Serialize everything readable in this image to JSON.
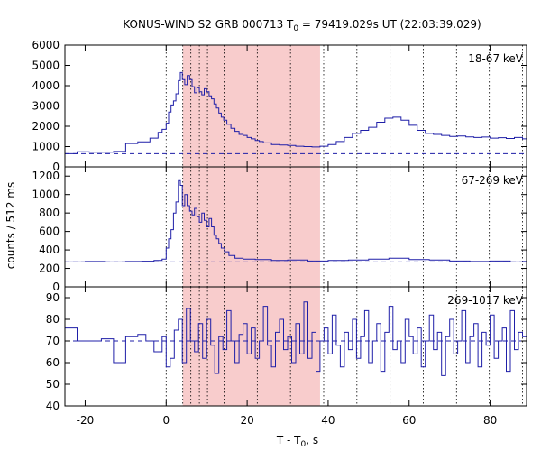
{
  "chart_data": {
    "type": "line",
    "title": "KONUS-WIND S2 GRB 000713 T0 = 79419.029s UT (22:03:39.029)",
    "title_parts": {
      "pre": "KONUS-WIND S2 GRB 000713 T",
      "sub": "0",
      "post": " = 79419.029s UT (22:03:39.029)"
    },
    "xlabel_parts": {
      "pre": "T - T",
      "sub": "0",
      "post": ", s"
    },
    "ylabel": "counts / 512 ms",
    "xlim": [
      -25,
      89
    ],
    "xticks": [
      -20,
      0,
      20,
      40,
      60,
      80
    ],
    "colors": {
      "line": "#1f1fa8",
      "shade": "#f8cccc",
      "background_level": "#1f1fa8",
      "grid": "#000000"
    },
    "shaded_interval": [
      4.1,
      38.0
    ],
    "vertical_marks": [
      0,
      4.1,
      6.1,
      8.2,
      10.2,
      14.3,
      22.5,
      30.7,
      38.9,
      47.1,
      55.3,
      63.5,
      71.7,
      79.8,
      88.0
    ],
    "panels": [
      {
        "label": "18-67 keV",
        "ylim": [
          0,
          6000
        ],
        "yticks": [
          0,
          1000,
          2000,
          3000,
          4000,
          5000,
          6000
        ],
        "background_level": 650,
        "series": [
          {
            "x": -25,
            "y": 650
          },
          {
            "x": -22,
            "y": 740
          },
          {
            "x": -19,
            "y": 720
          },
          {
            "x": -16,
            "y": 720
          },
          {
            "x": -13,
            "y": 760
          },
          {
            "x": -10,
            "y": 1150
          },
          {
            "x": -7,
            "y": 1230
          },
          {
            "x": -4,
            "y": 1420
          },
          {
            "x": -2,
            "y": 1700
          },
          {
            "x": -1,
            "y": 1850
          },
          {
            "x": 0,
            "y": 2150
          },
          {
            "x": 0.6,
            "y": 2700
          },
          {
            "x": 1.2,
            "y": 3050
          },
          {
            "x": 1.8,
            "y": 3250
          },
          {
            "x": 2.4,
            "y": 3600
          },
          {
            "x": 3.0,
            "y": 4250
          },
          {
            "x": 3.5,
            "y": 4650
          },
          {
            "x": 4.0,
            "y": 4300
          },
          {
            "x": 4.6,
            "y": 4050
          },
          {
            "x": 5.2,
            "y": 4500
          },
          {
            "x": 5.8,
            "y": 4300
          },
          {
            "x": 6.4,
            "y": 3950
          },
          {
            "x": 7.0,
            "y": 3650
          },
          {
            "x": 7.6,
            "y": 3900
          },
          {
            "x": 8.2,
            "y": 3700
          },
          {
            "x": 8.8,
            "y": 3550
          },
          {
            "x": 9.4,
            "y": 3850
          },
          {
            "x": 10.0,
            "y": 3700
          },
          {
            "x": 10.6,
            "y": 3500
          },
          {
            "x": 11.2,
            "y": 3350
          },
          {
            "x": 11.8,
            "y": 3100
          },
          {
            "x": 12.4,
            "y": 2900
          },
          {
            "x": 13.0,
            "y": 2650
          },
          {
            "x": 13.6,
            "y": 2450
          },
          {
            "x": 14.2,
            "y": 2300
          },
          {
            "x": 15.0,
            "y": 2100
          },
          {
            "x": 16.0,
            "y": 1900
          },
          {
            "x": 17.0,
            "y": 1750
          },
          {
            "x": 18.0,
            "y": 1600
          },
          {
            "x": 19.0,
            "y": 1550
          },
          {
            "x": 20.0,
            "y": 1450
          },
          {
            "x": 21.0,
            "y": 1380
          },
          {
            "x": 22.0,
            "y": 1300
          },
          {
            "x": 23.0,
            "y": 1250
          },
          {
            "x": 24.0,
            "y": 1180
          },
          {
            "x": 26.0,
            "y": 1100
          },
          {
            "x": 28.0,
            "y": 1080
          },
          {
            "x": 30.0,
            "y": 1060
          },
          {
            "x": 32.0,
            "y": 1020
          },
          {
            "x": 34.0,
            "y": 1000
          },
          {
            "x": 36.0,
            "y": 980
          },
          {
            "x": 38.0,
            "y": 1020
          },
          {
            "x": 40.0,
            "y": 1100
          },
          {
            "x": 42.0,
            "y": 1250
          },
          {
            "x": 44.0,
            "y": 1450
          },
          {
            "x": 46.0,
            "y": 1650
          },
          {
            "x": 48.0,
            "y": 1800
          },
          {
            "x": 50.0,
            "y": 1950
          },
          {
            "x": 52.0,
            "y": 2200
          },
          {
            "x": 54.0,
            "y": 2400
          },
          {
            "x": 56.0,
            "y": 2450
          },
          {
            "x": 58.0,
            "y": 2300
          },
          {
            "x": 60.0,
            "y": 2050
          },
          {
            "x": 62.0,
            "y": 1800
          },
          {
            "x": 64.0,
            "y": 1650
          },
          {
            "x": 66.0,
            "y": 1600
          },
          {
            "x": 68.0,
            "y": 1550
          },
          {
            "x": 70.0,
            "y": 1500
          },
          {
            "x": 72.0,
            "y": 1520
          },
          {
            "x": 74.0,
            "y": 1480
          },
          {
            "x": 76.0,
            "y": 1450
          },
          {
            "x": 78.0,
            "y": 1470
          },
          {
            "x": 80.0,
            "y": 1420
          },
          {
            "x": 82.0,
            "y": 1440
          },
          {
            "x": 84.0,
            "y": 1400
          },
          {
            "x": 86.0,
            "y": 1450
          },
          {
            "x": 88.0,
            "y": 1380
          }
        ]
      },
      {
        "label": "67-269 keV",
        "ylim": [
          0,
          1300
        ],
        "yticks": [
          0,
          200,
          400,
          600,
          800,
          1000,
          1200
        ],
        "background_level": 270,
        "series": [
          {
            "x": -25,
            "y": 270
          },
          {
            "x": -20,
            "y": 275
          },
          {
            "x": -15,
            "y": 270
          },
          {
            "x": -10,
            "y": 275
          },
          {
            "x": -6,
            "y": 278
          },
          {
            "x": -3,
            "y": 285
          },
          {
            "x": -1,
            "y": 300
          },
          {
            "x": 0,
            "y": 420
          },
          {
            "x": 0.6,
            "y": 520
          },
          {
            "x": 1.2,
            "y": 620
          },
          {
            "x": 1.8,
            "y": 800
          },
          {
            "x": 2.4,
            "y": 920
          },
          {
            "x": 3.0,
            "y": 1150
          },
          {
            "x": 3.5,
            "y": 1100
          },
          {
            "x": 4.0,
            "y": 880
          },
          {
            "x": 4.6,
            "y": 1000
          },
          {
            "x": 5.2,
            "y": 880
          },
          {
            "x": 5.8,
            "y": 820
          },
          {
            "x": 6.4,
            "y": 780
          },
          {
            "x": 7.0,
            "y": 850
          },
          {
            "x": 7.6,
            "y": 760
          },
          {
            "x": 8.2,
            "y": 700
          },
          {
            "x": 8.8,
            "y": 800
          },
          {
            "x": 9.4,
            "y": 720
          },
          {
            "x": 10.0,
            "y": 650
          },
          {
            "x": 10.6,
            "y": 740
          },
          {
            "x": 11.2,
            "y": 650
          },
          {
            "x": 11.8,
            "y": 560
          },
          {
            "x": 12.4,
            "y": 520
          },
          {
            "x": 13.0,
            "y": 470
          },
          {
            "x": 13.6,
            "y": 420
          },
          {
            "x": 14.4,
            "y": 380
          },
          {
            "x": 15.5,
            "y": 340
          },
          {
            "x": 17.0,
            "y": 310
          },
          {
            "x": 19.0,
            "y": 300
          },
          {
            "x": 22.0,
            "y": 295
          },
          {
            "x": 26.0,
            "y": 285
          },
          {
            "x": 30.0,
            "y": 290
          },
          {
            "x": 35.0,
            "y": 280
          },
          {
            "x": 40.0,
            "y": 285
          },
          {
            "x": 45.0,
            "y": 290
          },
          {
            "x": 50.0,
            "y": 300
          },
          {
            "x": 55.0,
            "y": 310
          },
          {
            "x": 60.0,
            "y": 295
          },
          {
            "x": 65.0,
            "y": 290
          },
          {
            "x": 70.0,
            "y": 280
          },
          {
            "x": 75.0,
            "y": 275
          },
          {
            "x": 80.0,
            "y": 280
          },
          {
            "x": 85.0,
            "y": 270
          },
          {
            "x": 88.0,
            "y": 275
          }
        ]
      },
      {
        "label": "269-1017 keV",
        "ylim": [
          40,
          95
        ],
        "yticks": [
          40,
          50,
          60,
          70,
          80,
          90
        ],
        "background_level": 70,
        "series": [
          {
            "x": -25,
            "y": 76
          },
          {
            "x": -22,
            "y": 70
          },
          {
            "x": -19,
            "y": 70
          },
          {
            "x": -16,
            "y": 71
          },
          {
            "x": -13,
            "y": 60
          },
          {
            "x": -10,
            "y": 72
          },
          {
            "x": -7,
            "y": 73
          },
          {
            "x": -5,
            "y": 70
          },
          {
            "x": -3,
            "y": 65
          },
          {
            "x": -1,
            "y": 72
          },
          {
            "x": 0,
            "y": 58
          },
          {
            "x": 1,
            "y": 62
          },
          {
            "x": 2,
            "y": 75
          },
          {
            "x": 3,
            "y": 80
          },
          {
            "x": 4,
            "y": 60
          },
          {
            "x": 5,
            "y": 85
          },
          {
            "x": 6,
            "y": 70
          },
          {
            "x": 7,
            "y": 65
          },
          {
            "x": 8,
            "y": 78
          },
          {
            "x": 9,
            "y": 62
          },
          {
            "x": 10,
            "y": 80
          },
          {
            "x": 11,
            "y": 68
          },
          {
            "x": 12,
            "y": 55
          },
          {
            "x": 13,
            "y": 72
          },
          {
            "x": 14,
            "y": 66
          },
          {
            "x": 15,
            "y": 84
          },
          {
            "x": 16,
            "y": 70
          },
          {
            "x": 17,
            "y": 60
          },
          {
            "x": 18,
            "y": 73
          },
          {
            "x": 19,
            "y": 78
          },
          {
            "x": 20,
            "y": 64
          },
          {
            "x": 21,
            "y": 76
          },
          {
            "x": 22,
            "y": 62
          },
          {
            "x": 23,
            "y": 70
          },
          {
            "x": 24,
            "y": 86
          },
          {
            "x": 25,
            "y": 68
          },
          {
            "x": 26,
            "y": 58
          },
          {
            "x": 27,
            "y": 74
          },
          {
            "x": 28,
            "y": 80
          },
          {
            "x": 29,
            "y": 66
          },
          {
            "x": 30,
            "y": 72
          },
          {
            "x": 31,
            "y": 60
          },
          {
            "x": 32,
            "y": 78
          },
          {
            "x": 33,
            "y": 64
          },
          {
            "x": 34,
            "y": 88
          },
          {
            "x": 35,
            "y": 62
          },
          {
            "x": 36,
            "y": 74
          },
          {
            "x": 37,
            "y": 56
          },
          {
            "x": 38,
            "y": 70
          },
          {
            "x": 39,
            "y": 76
          },
          {
            "x": 40,
            "y": 64
          },
          {
            "x": 41,
            "y": 82
          },
          {
            "x": 42,
            "y": 68
          },
          {
            "x": 43,
            "y": 58
          },
          {
            "x": 44,
            "y": 74
          },
          {
            "x": 45,
            "y": 66
          },
          {
            "x": 46,
            "y": 80
          },
          {
            "x": 47,
            "y": 62
          },
          {
            "x": 48,
            "y": 72
          },
          {
            "x": 49,
            "y": 84
          },
          {
            "x": 50,
            "y": 60
          },
          {
            "x": 51,
            "y": 70
          },
          {
            "x": 52,
            "y": 78
          },
          {
            "x": 53,
            "y": 56
          },
          {
            "x": 54,
            "y": 74
          },
          {
            "x": 55,
            "y": 86
          },
          {
            "x": 56,
            "y": 66
          },
          {
            "x": 57,
            "y": 70
          },
          {
            "x": 58,
            "y": 60
          },
          {
            "x": 59,
            "y": 80
          },
          {
            "x": 60,
            "y": 72
          },
          {
            "x": 61,
            "y": 64
          },
          {
            "x": 62,
            "y": 76
          },
          {
            "x": 63,
            "y": 58
          },
          {
            "x": 64,
            "y": 70
          },
          {
            "x": 65,
            "y": 82
          },
          {
            "x": 66,
            "y": 66
          },
          {
            "x": 67,
            "y": 74
          },
          {
            "x": 68,
            "y": 54
          },
          {
            "x": 69,
            "y": 72
          },
          {
            "x": 70,
            "y": 80
          },
          {
            "x": 71,
            "y": 64
          },
          {
            "x": 72,
            "y": 70
          },
          {
            "x": 73,
            "y": 84
          },
          {
            "x": 74,
            "y": 60
          },
          {
            "x": 75,
            "y": 72
          },
          {
            "x": 76,
            "y": 78
          },
          {
            "x": 77,
            "y": 58
          },
          {
            "x": 78,
            "y": 74
          },
          {
            "x": 79,
            "y": 68
          },
          {
            "x": 80,
            "y": 82
          },
          {
            "x": 81,
            "y": 62
          },
          {
            "x": 82,
            "y": 70
          },
          {
            "x": 83,
            "y": 76
          },
          {
            "x": 84,
            "y": 56
          },
          {
            "x": 85,
            "y": 84
          },
          {
            "x": 86,
            "y": 66
          },
          {
            "x": 87,
            "y": 74
          },
          {
            "x": 88,
            "y": 72
          }
        ]
      }
    ]
  }
}
